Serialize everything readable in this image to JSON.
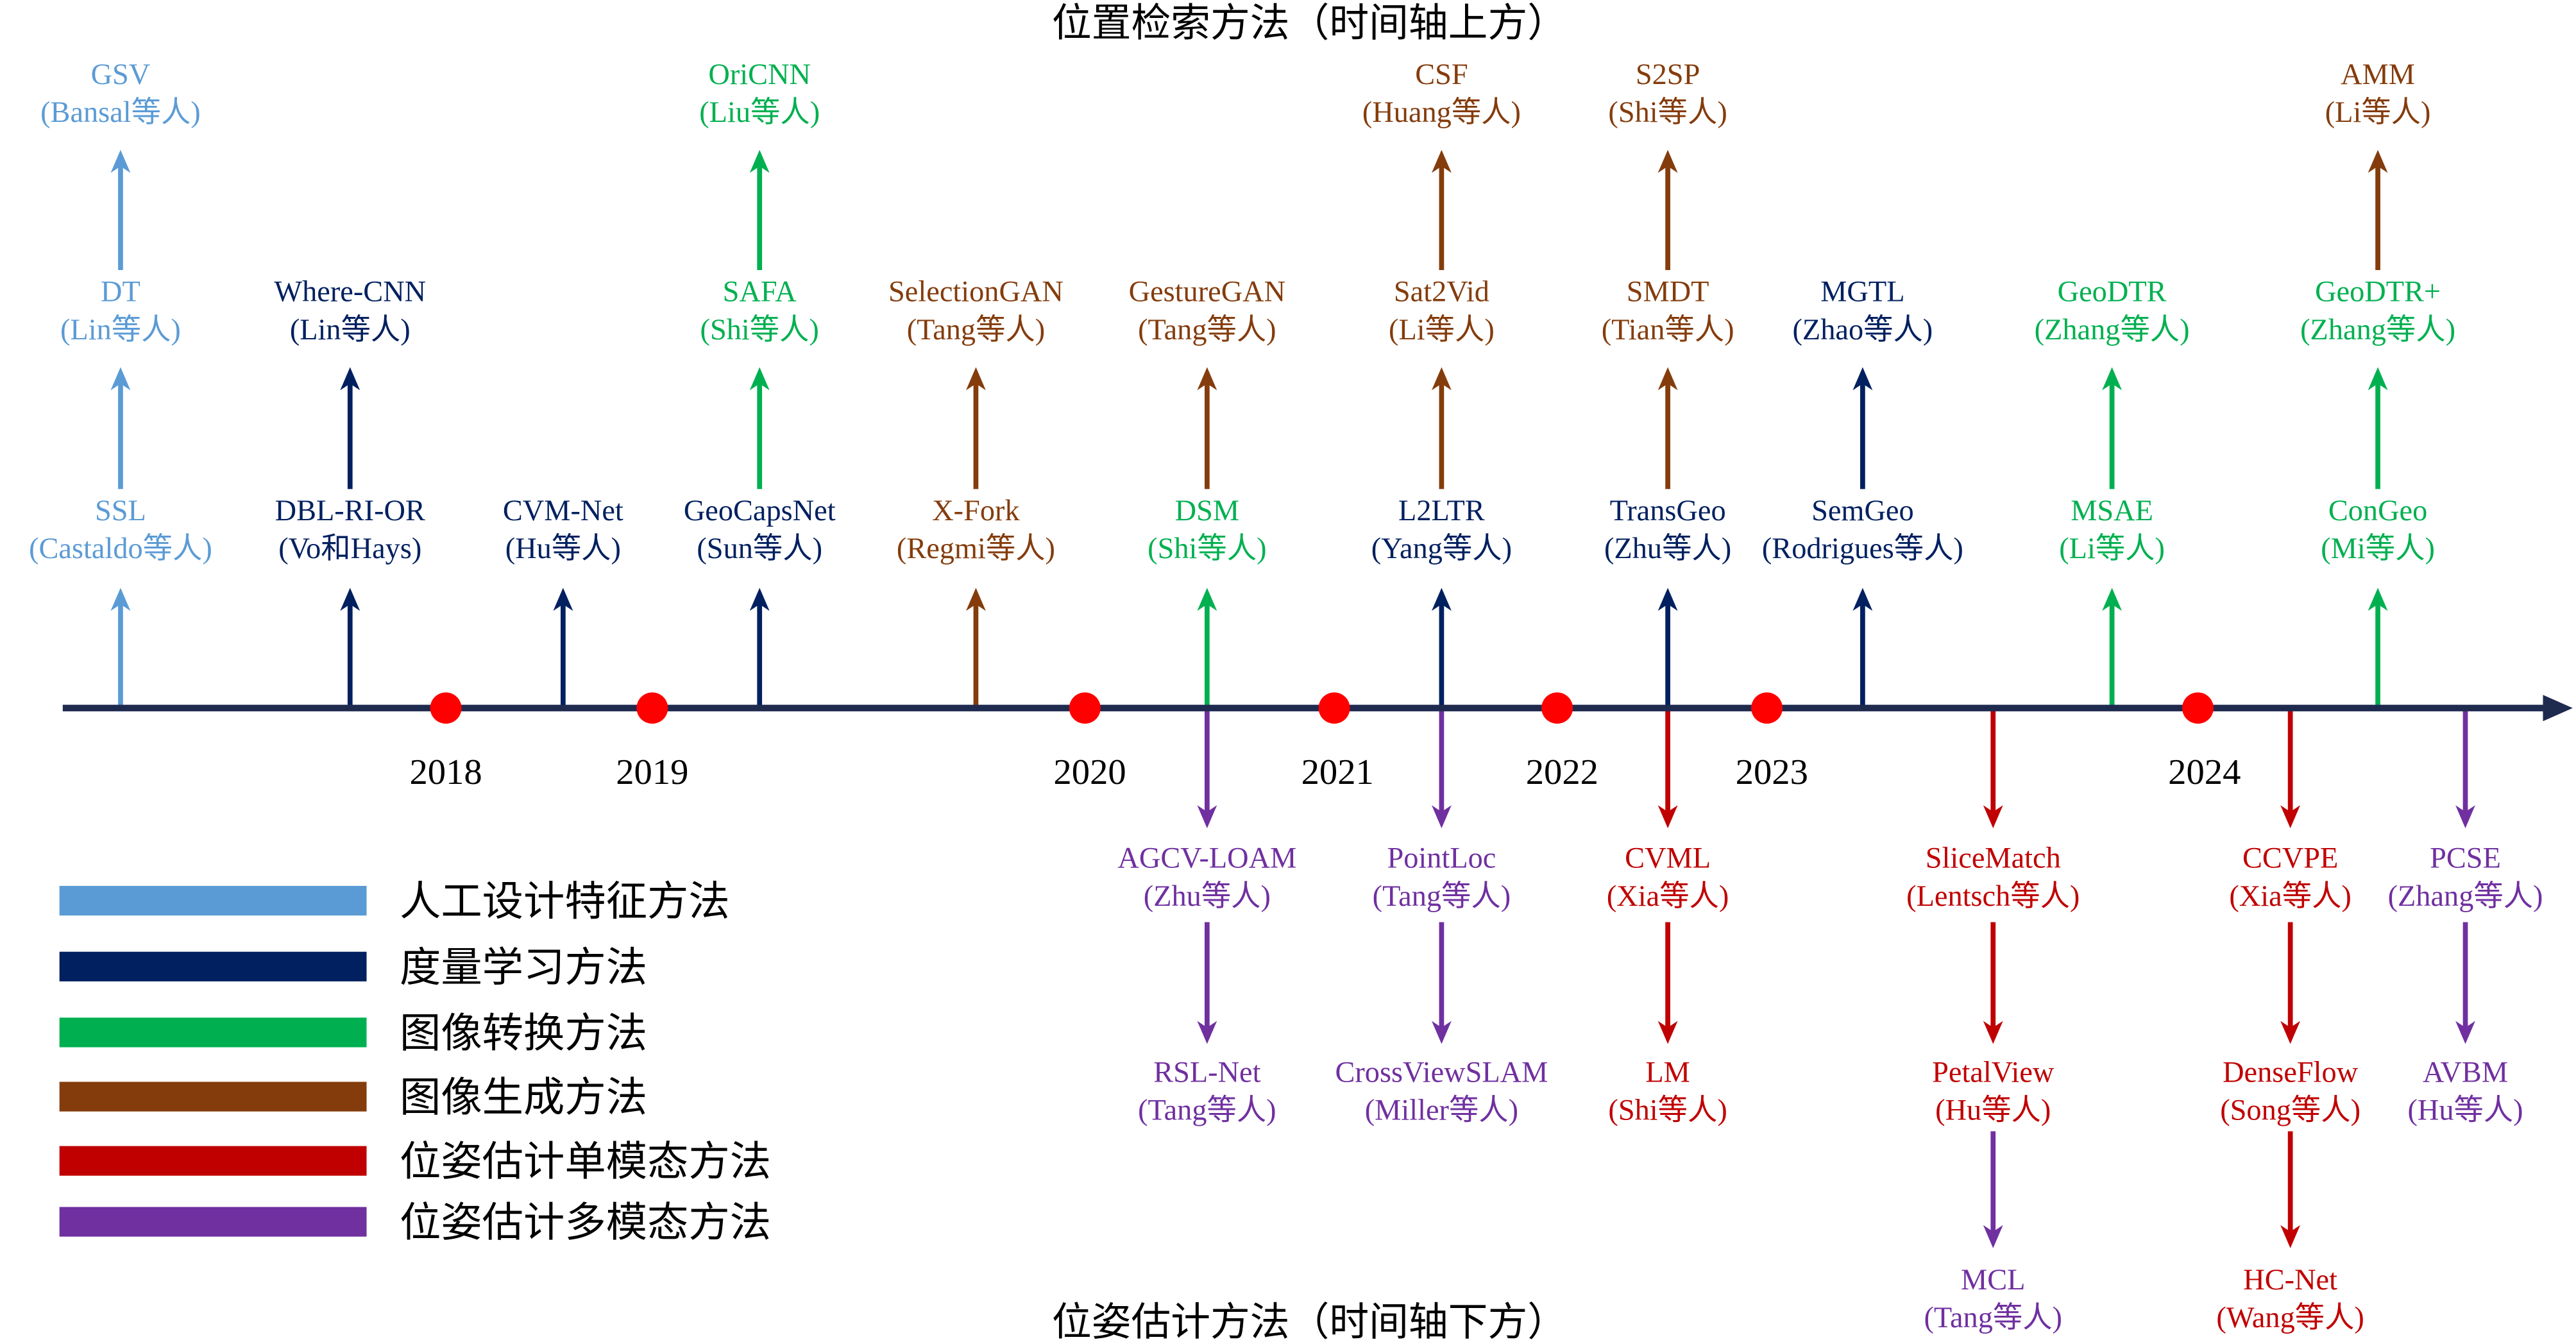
{
  "titles": {
    "top": "位置检索方法（时间轴上方）",
    "bottom": "位姿估计方法（时间轴下方）"
  },
  "categories": {
    "handcrafted": {
      "label": "人工设计特征方法",
      "color": "#5B9BD5"
    },
    "metric": {
      "label": "度量学习方法",
      "color": "#002060"
    },
    "transform": {
      "label": "图像转换方法",
      "color": "#00B050"
    },
    "generation": {
      "label": "图像生成方法",
      "color": "#843C0C"
    },
    "pose_single": {
      "label": "位姿估计单模态方法",
      "color": "#C00000"
    },
    "pose_multi": {
      "label": "位姿估计多模态方法",
      "color": "#7030A0"
    }
  },
  "legend_order": [
    "handcrafted",
    "metric",
    "transform",
    "generation",
    "pose_single",
    "pose_multi"
  ],
  "timeline": {
    "axis_color": "#1F2A4F",
    "marker_color": "#FF0000",
    "years": [
      "2018",
      "2019",
      "2020",
      "2021",
      "2022",
      "2023",
      "2024"
    ]
  },
  "above": [
    [
      {
        "name": "SSL",
        "author": "(Castaldo等人)",
        "cat": "handcrafted"
      },
      {
        "name": "DT",
        "author": "(Lin等人)",
        "cat": "handcrafted"
      },
      {
        "name": "GSV",
        "author": "(Bansal等人)",
        "cat": "handcrafted"
      }
    ],
    [
      {
        "name": "DBL-RI-OR",
        "author": "(Vo和Hays)",
        "cat": "metric"
      },
      {
        "name": "Where-CNN",
        "author": "(Lin等人)",
        "cat": "metric"
      }
    ],
    [
      {
        "name": "CVM-Net",
        "author": "(Hu等人)",
        "cat": "metric"
      }
    ],
    [
      {
        "name": "GeoCapsNet",
        "author": "(Sun等人)",
        "cat": "metric"
      },
      {
        "name": "SAFA",
        "author": "(Shi等人)",
        "cat": "transform"
      },
      {
        "name": "OriCNN",
        "author": "(Liu等人)",
        "cat": "transform"
      }
    ],
    [
      {
        "name": "X-Fork",
        "author": "(Regmi等人)",
        "cat": "generation"
      },
      {
        "name": "SelectionGAN",
        "author": "(Tang等人)",
        "cat": "generation"
      }
    ],
    [
      {
        "name": "DSM",
        "author": "(Shi等人)",
        "cat": "transform"
      },
      {
        "name": "GestureGAN",
        "author": "(Tang等人)",
        "cat": "generation"
      }
    ],
    [
      {
        "name": "L2LTR",
        "author": "(Yang等人)",
        "cat": "metric"
      },
      {
        "name": "Sat2Vid",
        "author": "(Li等人)",
        "cat": "generation"
      },
      {
        "name": "CSF",
        "author": "(Huang等人)",
        "cat": "generation"
      }
    ],
    [
      {
        "name": "TransGeo",
        "author": "(Zhu等人)",
        "cat": "metric"
      },
      {
        "name": "SMDT",
        "author": "(Tian等人)",
        "cat": "generation"
      },
      {
        "name": "S2SP",
        "author": "(Shi等人)",
        "cat": "generation"
      }
    ],
    [
      {
        "name": "SemGeo",
        "author": "(Rodrigues等人)",
        "cat": "metric"
      },
      {
        "name": "MGTL",
        "author": "(Zhao等人)",
        "cat": "metric"
      }
    ],
    [
      {
        "name": "MSAE",
        "author": "(Li等人)",
        "cat": "transform"
      },
      {
        "name": "GeoDTR",
        "author": "(Zhang等人)",
        "cat": "transform"
      }
    ],
    [
      {
        "name": "ConGeo",
        "author": "(Mi等人)",
        "cat": "transform"
      },
      {
        "name": "GeoDTR+",
        "author": "(Zhang等人)",
        "cat": "transform"
      },
      {
        "name": "AMM",
        "author": "(Li等人)",
        "cat": "generation"
      }
    ]
  ],
  "below": [
    [
      {
        "name": "AGCV-LOAM",
        "author": "(Zhu等人)",
        "cat": "pose_multi"
      },
      {
        "name": "RSL-Net",
        "author": "(Tang等人)",
        "cat": "pose_multi"
      }
    ],
    [
      {
        "name": "PointLoc",
        "author": "(Tang等人)",
        "cat": "pose_multi"
      },
      {
        "name": "CrossViewSLAM",
        "author": "(Miller等人)",
        "cat": "pose_multi"
      }
    ],
    [
      {
        "name": "CVML",
        "author": "(Xia等人)",
        "cat": "pose_single"
      },
      {
        "name": "LM",
        "author": "(Shi等人)",
        "cat": "pose_single"
      }
    ],
    [
      {
        "name": "SliceMatch",
        "author": "(Lentsch等人)",
        "cat": "pose_single"
      },
      {
        "name": "PetalView",
        "author": "(Hu等人)",
        "cat": "pose_single"
      },
      {
        "name": "MCL",
        "author": "(Tang等人)",
        "cat": "pose_multi"
      }
    ],
    [
      {
        "name": "CCVPE",
        "author": "(Xia等人)",
        "cat": "pose_single"
      },
      {
        "name": "DenseFlow",
        "author": "(Song等人)",
        "cat": "pose_single"
      },
      {
        "name": "HC-Net",
        "author": "(Wang等人)",
        "cat": "pose_single"
      }
    ],
    [
      {
        "name": "PCSE",
        "author": "(Zhang等人)",
        "cat": "pose_multi"
      },
      {
        "name": "AVBM",
        "author": "(Hu等人)",
        "cat": "pose_multi"
      }
    ]
  ]
}
